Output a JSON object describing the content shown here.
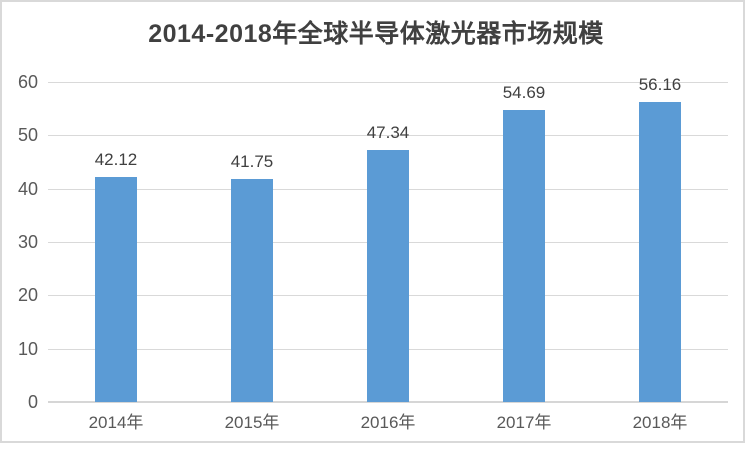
{
  "chart_data": {
    "type": "bar",
    "title": "2014-2018年全球半导体激光器市场规模",
    "categories": [
      "2014年",
      "2015年",
      "2016年",
      "2017年",
      "2018年"
    ],
    "values": [
      42.12,
      41.75,
      47.34,
      54.69,
      56.16
    ],
    "data_labels": [
      "42.12",
      "41.75",
      "47.34",
      "54.69",
      "56.16"
    ],
    "y_ticks": [
      0,
      10,
      20,
      30,
      40,
      50,
      60
    ],
    "ylim": [
      0,
      60
    ],
    "xlabel": "",
    "ylabel": "",
    "grid": true,
    "legend_position": "none",
    "colors": {
      "bar": "#5B9BD5",
      "gridline": "#D9D9D9",
      "axis": "#D6D6D6",
      "tick_label": "#595959",
      "data_label": "#404040",
      "title": "#404040",
      "frame_border": "#D9D9D9",
      "background": "#FFFFFF"
    }
  }
}
